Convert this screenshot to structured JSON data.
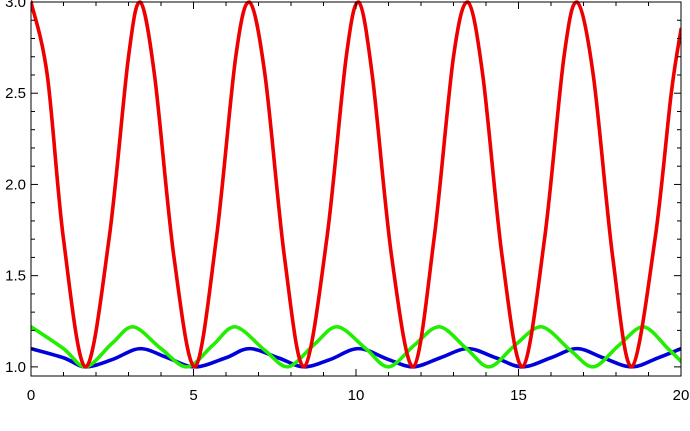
{
  "chart_data": {
    "type": "line",
    "title": "",
    "xlabel": "",
    "ylabel": "",
    "xlim": [
      0,
      20
    ],
    "ylim": [
      0.95,
      3.0
    ],
    "x_ticks": [
      0,
      5,
      10,
      15,
      20
    ],
    "x_tick_labels": [
      "0",
      "5",
      "10",
      "15",
      "20"
    ],
    "y_ticks": [
      1.0,
      1.5,
      2.0,
      2.5,
      3.0
    ],
    "y_tick_labels": [
      "1.0",
      "1.5",
      "2.0",
      "2.5",
      "3.0"
    ],
    "grid": false,
    "legend": "none",
    "series": [
      {
        "color": "#0000dd",
        "x": [
          0,
          1,
          1.68,
          2.5,
          3.36,
          4.2,
          5.04,
          6.0,
          6.72,
          7.6,
          8.4,
          9.2,
          10.08,
          11.0,
          11.76,
          12.6,
          13.44,
          14.3,
          15.12,
          16.0,
          16.8,
          17.6,
          18.48,
          19.3,
          20.0
        ],
        "y": [
          1.1,
          1.05,
          1.0,
          1.04,
          1.1,
          1.05,
          1.0,
          1.05,
          1.1,
          1.05,
          1.0,
          1.04,
          1.1,
          1.04,
          1.0,
          1.05,
          1.1,
          1.05,
          1.0,
          1.05,
          1.1,
          1.05,
          1.0,
          1.05,
          1.1
        ]
      },
      {
        "color": "#22ee00",
        "x": [
          0,
          1,
          1.68,
          2.5,
          3.14,
          4.0,
          4.8,
          5.6,
          6.28,
          7.2,
          7.9,
          8.7,
          9.42,
          10.3,
          11.0,
          11.8,
          12.56,
          13.4,
          14.1,
          14.9,
          15.7,
          16.6,
          17.3,
          18.1,
          18.84,
          19.6,
          20.0
        ],
        "y": [
          1.22,
          1.1,
          1.0,
          1.13,
          1.22,
          1.1,
          1.0,
          1.12,
          1.22,
          1.09,
          1.0,
          1.12,
          1.22,
          1.1,
          1.0,
          1.12,
          1.22,
          1.1,
          1.0,
          1.12,
          1.22,
          1.09,
          1.0,
          1.12,
          1.22,
          1.1,
          1.03
        ]
      },
      {
        "color": "#ee0000",
        "x": [
          0,
          0.5,
          1.0,
          1.68,
          2.4,
          3.0,
          3.36,
          3.8,
          4.4,
          5.04,
          5.7,
          6.3,
          6.72,
          7.2,
          7.8,
          8.4,
          9.1,
          9.7,
          10.08,
          10.5,
          11.1,
          11.76,
          12.4,
          13.0,
          13.44,
          13.9,
          14.5,
          15.12,
          15.8,
          16.4,
          16.8,
          17.3,
          17.9,
          18.48,
          19.2,
          19.7,
          20.0
        ],
        "y": [
          3.0,
          2.6,
          1.7,
          1.0,
          1.7,
          2.7,
          3.0,
          2.6,
          1.6,
          1.0,
          1.7,
          2.7,
          3.0,
          2.6,
          1.6,
          1.0,
          1.7,
          2.7,
          3.0,
          2.6,
          1.6,
          1.0,
          1.7,
          2.7,
          3.0,
          2.6,
          1.6,
          1.0,
          1.7,
          2.7,
          3.0,
          2.6,
          1.6,
          1.0,
          1.7,
          2.5,
          2.85
        ]
      }
    ]
  }
}
